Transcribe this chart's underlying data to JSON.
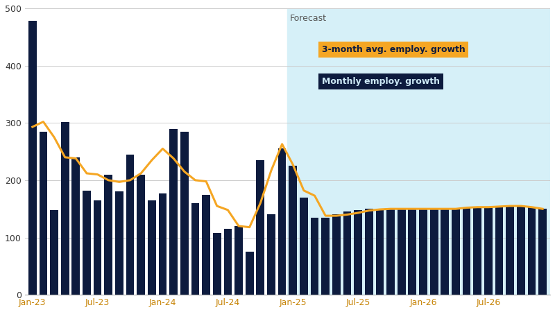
{
  "bar_values": [
    478,
    285,
    148,
    302,
    240,
    182,
    165,
    210,
    180,
    245,
    210,
    165,
    177,
    290,
    285,
    160,
    175,
    108,
    115,
    120,
    75,
    235,
    140,
    255,
    225,
    170,
    135,
    135,
    140,
    145,
    148,
    150,
    150,
    150,
    150,
    150,
    150,
    150,
    150,
    150,
    152,
    153,
    153,
    154,
    155,
    155,
    153,
    150
  ],
  "line_values": [
    293,
    302,
    275,
    240,
    238,
    212,
    210,
    200,
    197,
    200,
    212,
    235,
    255,
    238,
    215,
    200,
    198,
    155,
    148,
    120,
    118,
    160,
    217,
    263,
    227,
    182,
    173,
    138,
    138,
    140,
    143,
    147,
    149,
    150,
    150,
    150,
    150,
    150,
    150,
    150,
    152,
    153,
    153,
    154,
    155,
    155,
    153,
    150
  ],
  "forecast_start_index": 24,
  "bar_color": "#0d1b3e",
  "line_color": "#f5a623",
  "forecast_bg_color": "#d6f0f8",
  "forecast_label": "Forecast",
  "legend_line_label": "3-month avg. employ. growth",
  "legend_bar_label": "Monthly employ. growth",
  "legend_line_bg": "#f5a623",
  "legend_bar_bg": "#0d1b3e",
  "legend_line_text_color": "#0d1b3e",
  "legend_bar_text_color": "#cce8f5",
  "yticks": [
    0,
    100,
    200,
    300,
    400,
    500
  ],
  "ylim": [
    0,
    500
  ],
  "xtick_labels": [
    "Jan-23",
    "Jul-23",
    "Jan-24",
    "Jul-24",
    "Jan-25",
    "Jul-25",
    "Jan-26",
    "Jul-26"
  ],
  "xtick_positions": [
    0,
    6,
    12,
    18,
    24,
    30,
    36,
    42
  ]
}
